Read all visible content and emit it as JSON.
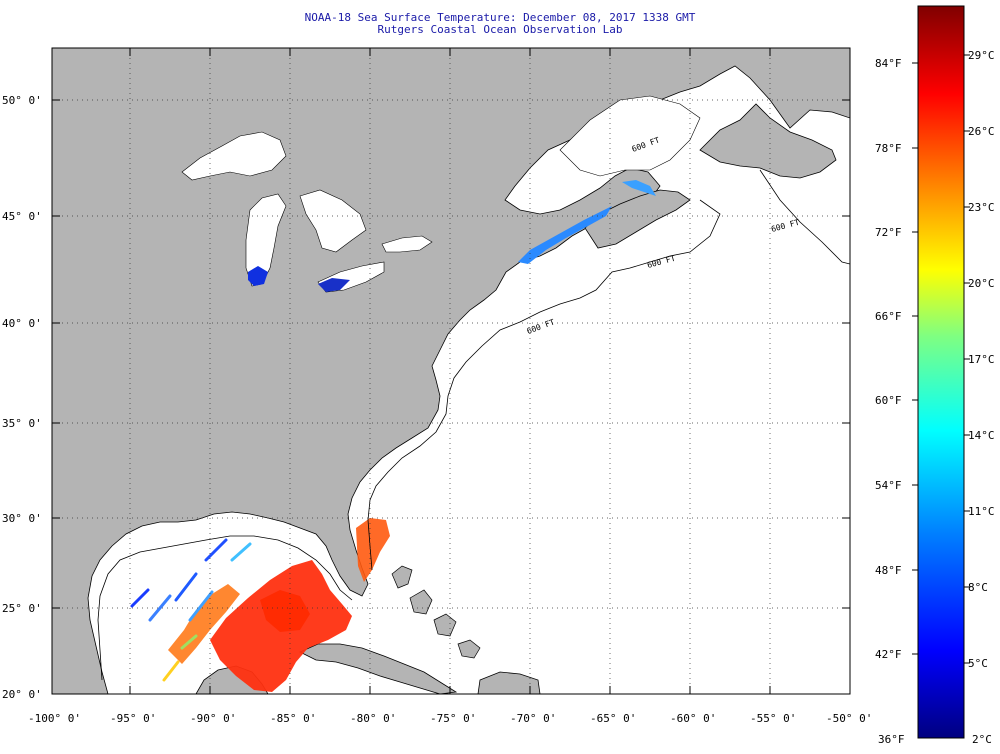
{
  "header": {
    "title": "NOAA-18 Sea Surface Temperature:  December 08, 2017 1338 GMT",
    "subtitle": "Rutgers Coastal Ocean Observation Lab"
  },
  "map": {
    "latitude_labels": [
      "50° 0'",
      "45° 0'",
      "40° 0'",
      "35° 0'",
      "30° 0'",
      "25° 0'",
      "20° 0'"
    ],
    "longitude_labels": [
      "-100° 0'",
      "-95° 0'",
      "-90° 0'",
      "-85° 0'",
      "-80° 0'",
      "-75° 0'",
      "-70° 0'",
      "-65° 0'",
      "-60° 0'",
      "-55° 0'",
      "-50° 0'"
    ],
    "contour_labels": [
      "600 FT",
      "600 FT",
      "600 FT",
      "600 FT"
    ],
    "colors": {
      "land": "#b4b4b4",
      "ocean": "#ffffff",
      "lakes": "#ffffff"
    }
  },
  "colorbar": {
    "fahrenheit_labels": [
      "84°F",
      "78°F",
      "72°F",
      "66°F",
      "60°F",
      "54°F",
      "48°F",
      "42°F",
      "36°F"
    ],
    "celsius_labels": [
      "29°C",
      "26°C",
      "23°C",
      "20°C",
      "17°C",
      "14°C",
      "11°C",
      "8°C",
      "5°C",
      "2°C"
    ],
    "gradient": [
      "#000080",
      "#0000ff",
      "#0080ff",
      "#00ffff",
      "#80ff80",
      "#ffff00",
      "#ff8000",
      "#ff0000",
      "#800000"
    ]
  }
}
